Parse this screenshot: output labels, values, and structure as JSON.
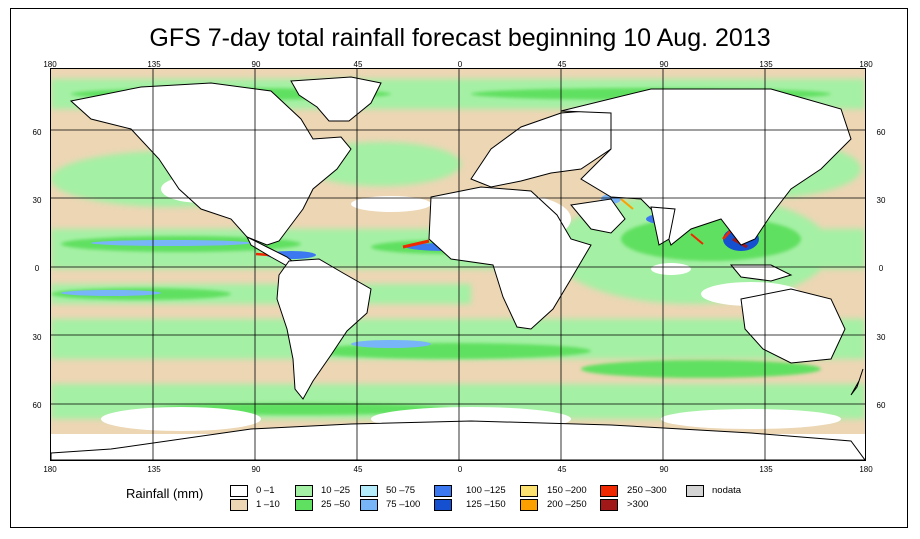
{
  "title": "GFS 7-day total rainfall forecast beginning 10 Aug. 2013",
  "axes": {
    "longitude_ticks": [
      "180",
      "135",
      "90",
      "45",
      "0",
      "45",
      "90",
      "135",
      "180"
    ],
    "latitude_ticks": [
      "60",
      "30",
      "0",
      "30",
      "60"
    ]
  },
  "legend": {
    "label": "Rainfall (mm)",
    "items": [
      {
        "label": "0 –1",
        "color": "#ffffff"
      },
      {
        "label": "1 –10",
        "color": "#ecd6b4"
      },
      {
        "label": "10 –25",
        "color": "#a4f0a4"
      },
      {
        "label": "25 –50",
        "color": "#60e060"
      },
      {
        "label": "50 –75",
        "color": "#b4ecfc"
      },
      {
        "label": "75 –100",
        "color": "#78b4f8"
      },
      {
        "label": "100 –125",
        "color": "#3c78f0"
      },
      {
        "label": "125 –150",
        "color": "#1450d0"
      },
      {
        "label": "150 –200",
        "color": "#fce070"
      },
      {
        "label": "200 –250",
        "color": "#fca000"
      },
      {
        "label": "250 –300",
        "color": "#f02800"
      },
      {
        "label": ">300",
        "color": "#a01818"
      },
      {
        "label": "nodata",
        "color": "#d4d4d4"
      }
    ]
  }
}
